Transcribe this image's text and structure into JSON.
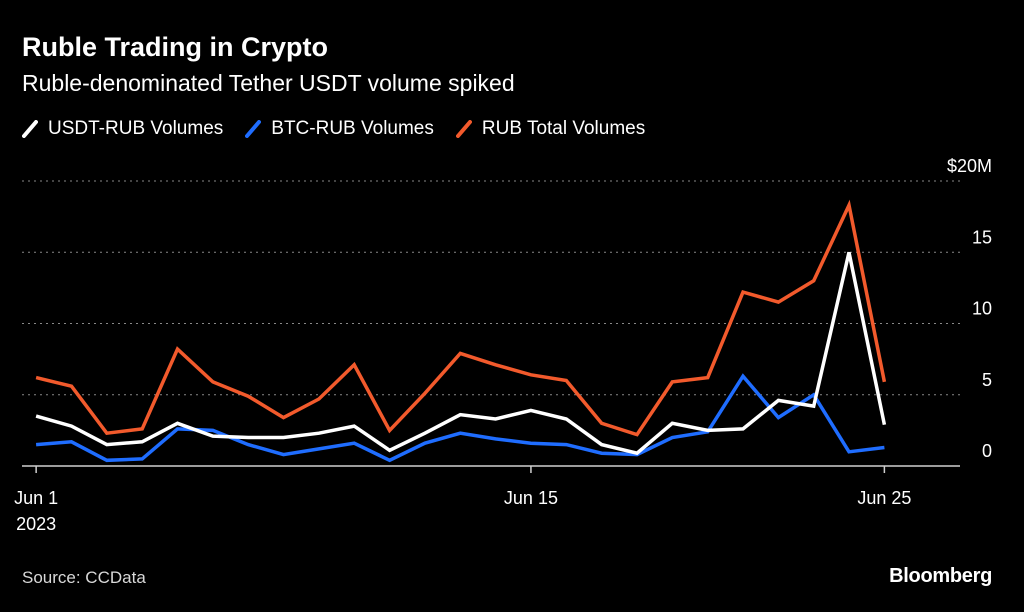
{
  "title": "Ruble Trading in Crypto",
  "subtitle": "Ruble-denominated Tether USDT volume spiked",
  "source": "Source: CCData",
  "brand": "Bloomberg",
  "colors": {
    "usdt": "#ffffff",
    "btc": "#1f6dff",
    "rub": "#f25a2c",
    "grid": "#888888",
    "background": "#000000"
  },
  "legend": [
    {
      "label": "USDT-RUB Volumes",
      "color": "#ffffff"
    },
    {
      "label": "BTC-RUB Volumes",
      "color": "#1f6dff"
    },
    {
      "label": "RUB Total Volumes",
      "color": "#f25a2c"
    }
  ],
  "chart_data": {
    "type": "line",
    "title": "Ruble Trading in Crypto",
    "subtitle": "Ruble-denominated Tether USDT volume spiked",
    "x": [
      1,
      2,
      3,
      4,
      5,
      6,
      7,
      8,
      9,
      10,
      11,
      12,
      13,
      14,
      15,
      16,
      17,
      18,
      19,
      20,
      21,
      22,
      23,
      24,
      25
    ],
    "x_ticks": [
      {
        "x": 1,
        "label": "Jun 1",
        "sublabel": "2023"
      },
      {
        "x": 15,
        "label": "Jun 15"
      },
      {
        "x": 25,
        "label": "Jun 25"
      }
    ],
    "y_ticks": [
      {
        "value": 20,
        "label": "$20M"
      },
      {
        "value": 15,
        "label": "15"
      },
      {
        "value": 10,
        "label": "10"
      },
      {
        "value": 5,
        "label": "5"
      },
      {
        "value": 0,
        "label": "0"
      }
    ],
    "ylim": [
      0,
      20
    ],
    "xlim": [
      0.6,
      26.8
    ],
    "series": [
      {
        "name": "RUB Total Volumes",
        "key": "rub",
        "values": [
          6.2,
          5.6,
          2.3,
          2.6,
          8.2,
          5.9,
          4.9,
          3.4,
          4.7,
          7.1,
          2.5,
          5.1,
          7.9,
          7.1,
          6.4,
          6.0,
          3.0,
          2.2,
          5.9,
          6.2,
          12.2,
          11.5,
          13.0,
          18.3,
          5.9
        ]
      },
      {
        "name": "BTC-RUB Volumes",
        "key": "btc",
        "values": [
          1.5,
          1.7,
          0.4,
          0.5,
          2.6,
          2.5,
          1.5,
          0.8,
          1.2,
          1.6,
          0.4,
          1.6,
          2.3,
          1.9,
          1.6,
          1.5,
          0.9,
          0.8,
          2.0,
          2.4,
          6.3,
          3.4,
          5.0,
          1.0,
          1.3
        ]
      },
      {
        "name": "USDT-RUB Volumes",
        "key": "usdt",
        "values": [
          3.5,
          2.8,
          1.5,
          1.7,
          3.0,
          2.1,
          2.0,
          2.0,
          2.3,
          2.8,
          1.1,
          2.3,
          3.6,
          3.3,
          3.9,
          3.3,
          1.5,
          0.9,
          3.0,
          2.5,
          2.6,
          4.6,
          4.2,
          15.0,
          2.9
        ]
      }
    ]
  }
}
